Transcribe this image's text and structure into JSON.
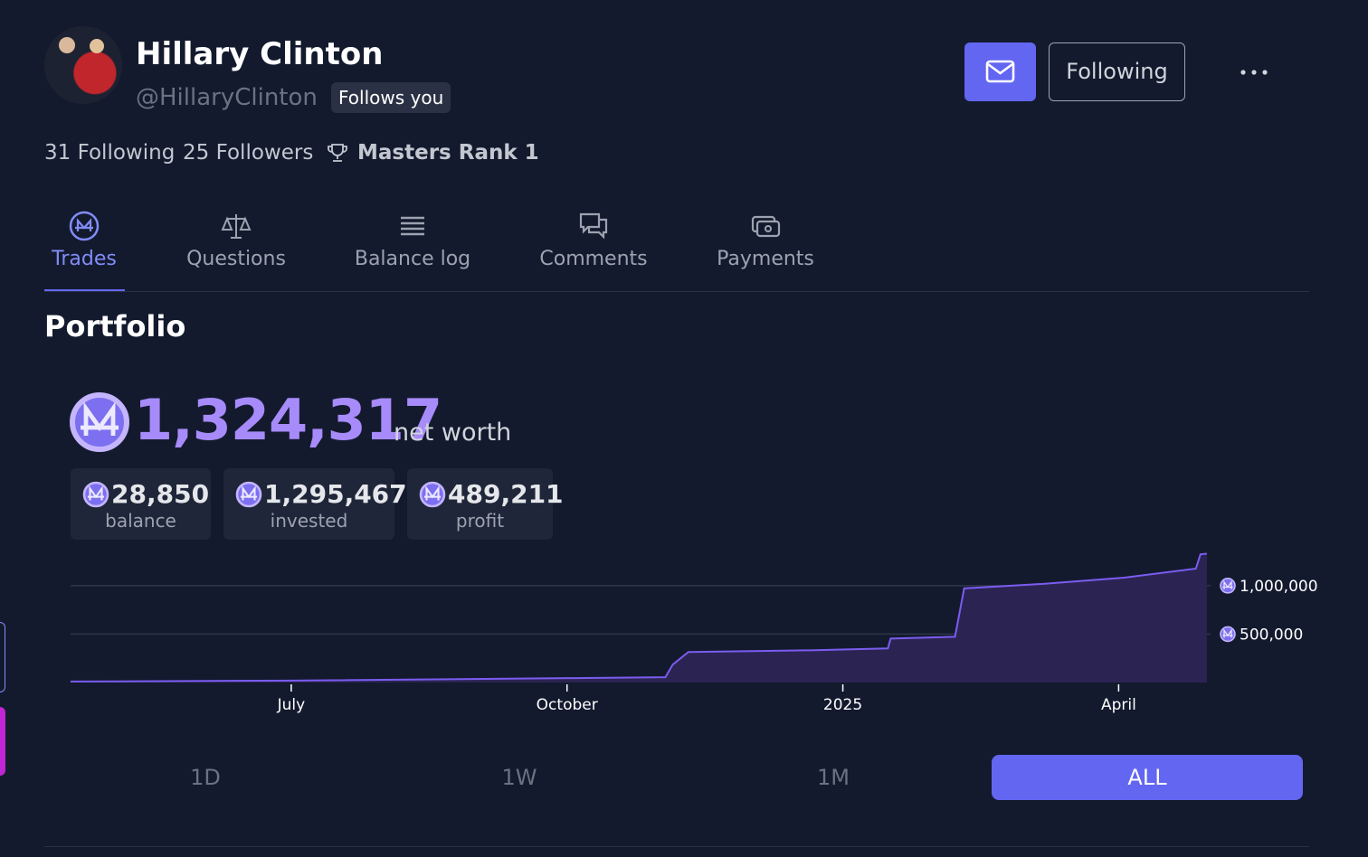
{
  "profile": {
    "name": "Hillary Clinton",
    "handle": "@HillaryClinton",
    "follows_badge": "Follows you",
    "follow_button": "Following",
    "following_count": "31 Following",
    "followers_count": "25 Followers",
    "rank": "Masters Rank 1"
  },
  "tabs": [
    "Trades",
    "Questions",
    "Balance log",
    "Comments",
    "Payments"
  ],
  "selected_tab": 0,
  "portfolio": {
    "heading": "Portfolio",
    "net_worth": "1,324,317",
    "net_worth_label": "net worth",
    "stats": [
      {
        "value": "28,850",
        "label": "balance"
      },
      {
        "value": "1,295,467",
        "label": "invested"
      },
      {
        "value": "489,211",
        "label": "profit"
      }
    ]
  },
  "chart_data": {
    "type": "area",
    "x": [
      4.6,
      7.0,
      10.0,
      11.07,
      11.15,
      11.32,
      12.64,
      13.49,
      13.52,
      14.22,
      14.32,
      15.18,
      16.06,
      16.84,
      16.89,
      16.96
    ],
    "values": [
      10000,
      20000,
      45000,
      55000,
      185000,
      315000,
      333000,
      352000,
      454000,
      472000,
      972000,
      1019000,
      1083000,
      1176000,
      1324000,
      1330000
    ],
    "color": "#7b5cf0",
    "fill": "#2b2452",
    "xlim": [
      4.6,
      17
    ],
    "xticks": [
      {
        "value": 7,
        "label": "July"
      },
      {
        "value": 10,
        "label": "October"
      },
      {
        "value": 13,
        "label": "2025"
      },
      {
        "value": 16,
        "label": "April"
      }
    ],
    "ylim": [
      0,
      1400000
    ],
    "yticks": [
      {
        "value": 500000,
        "label": "500,000"
      },
      {
        "value": 1000000,
        "label": "1,000,000"
      }
    ],
    "grid": true
  },
  "time_ranges": [
    "1D",
    "1W",
    "1M",
    "ALL"
  ],
  "selected_range": 3
}
